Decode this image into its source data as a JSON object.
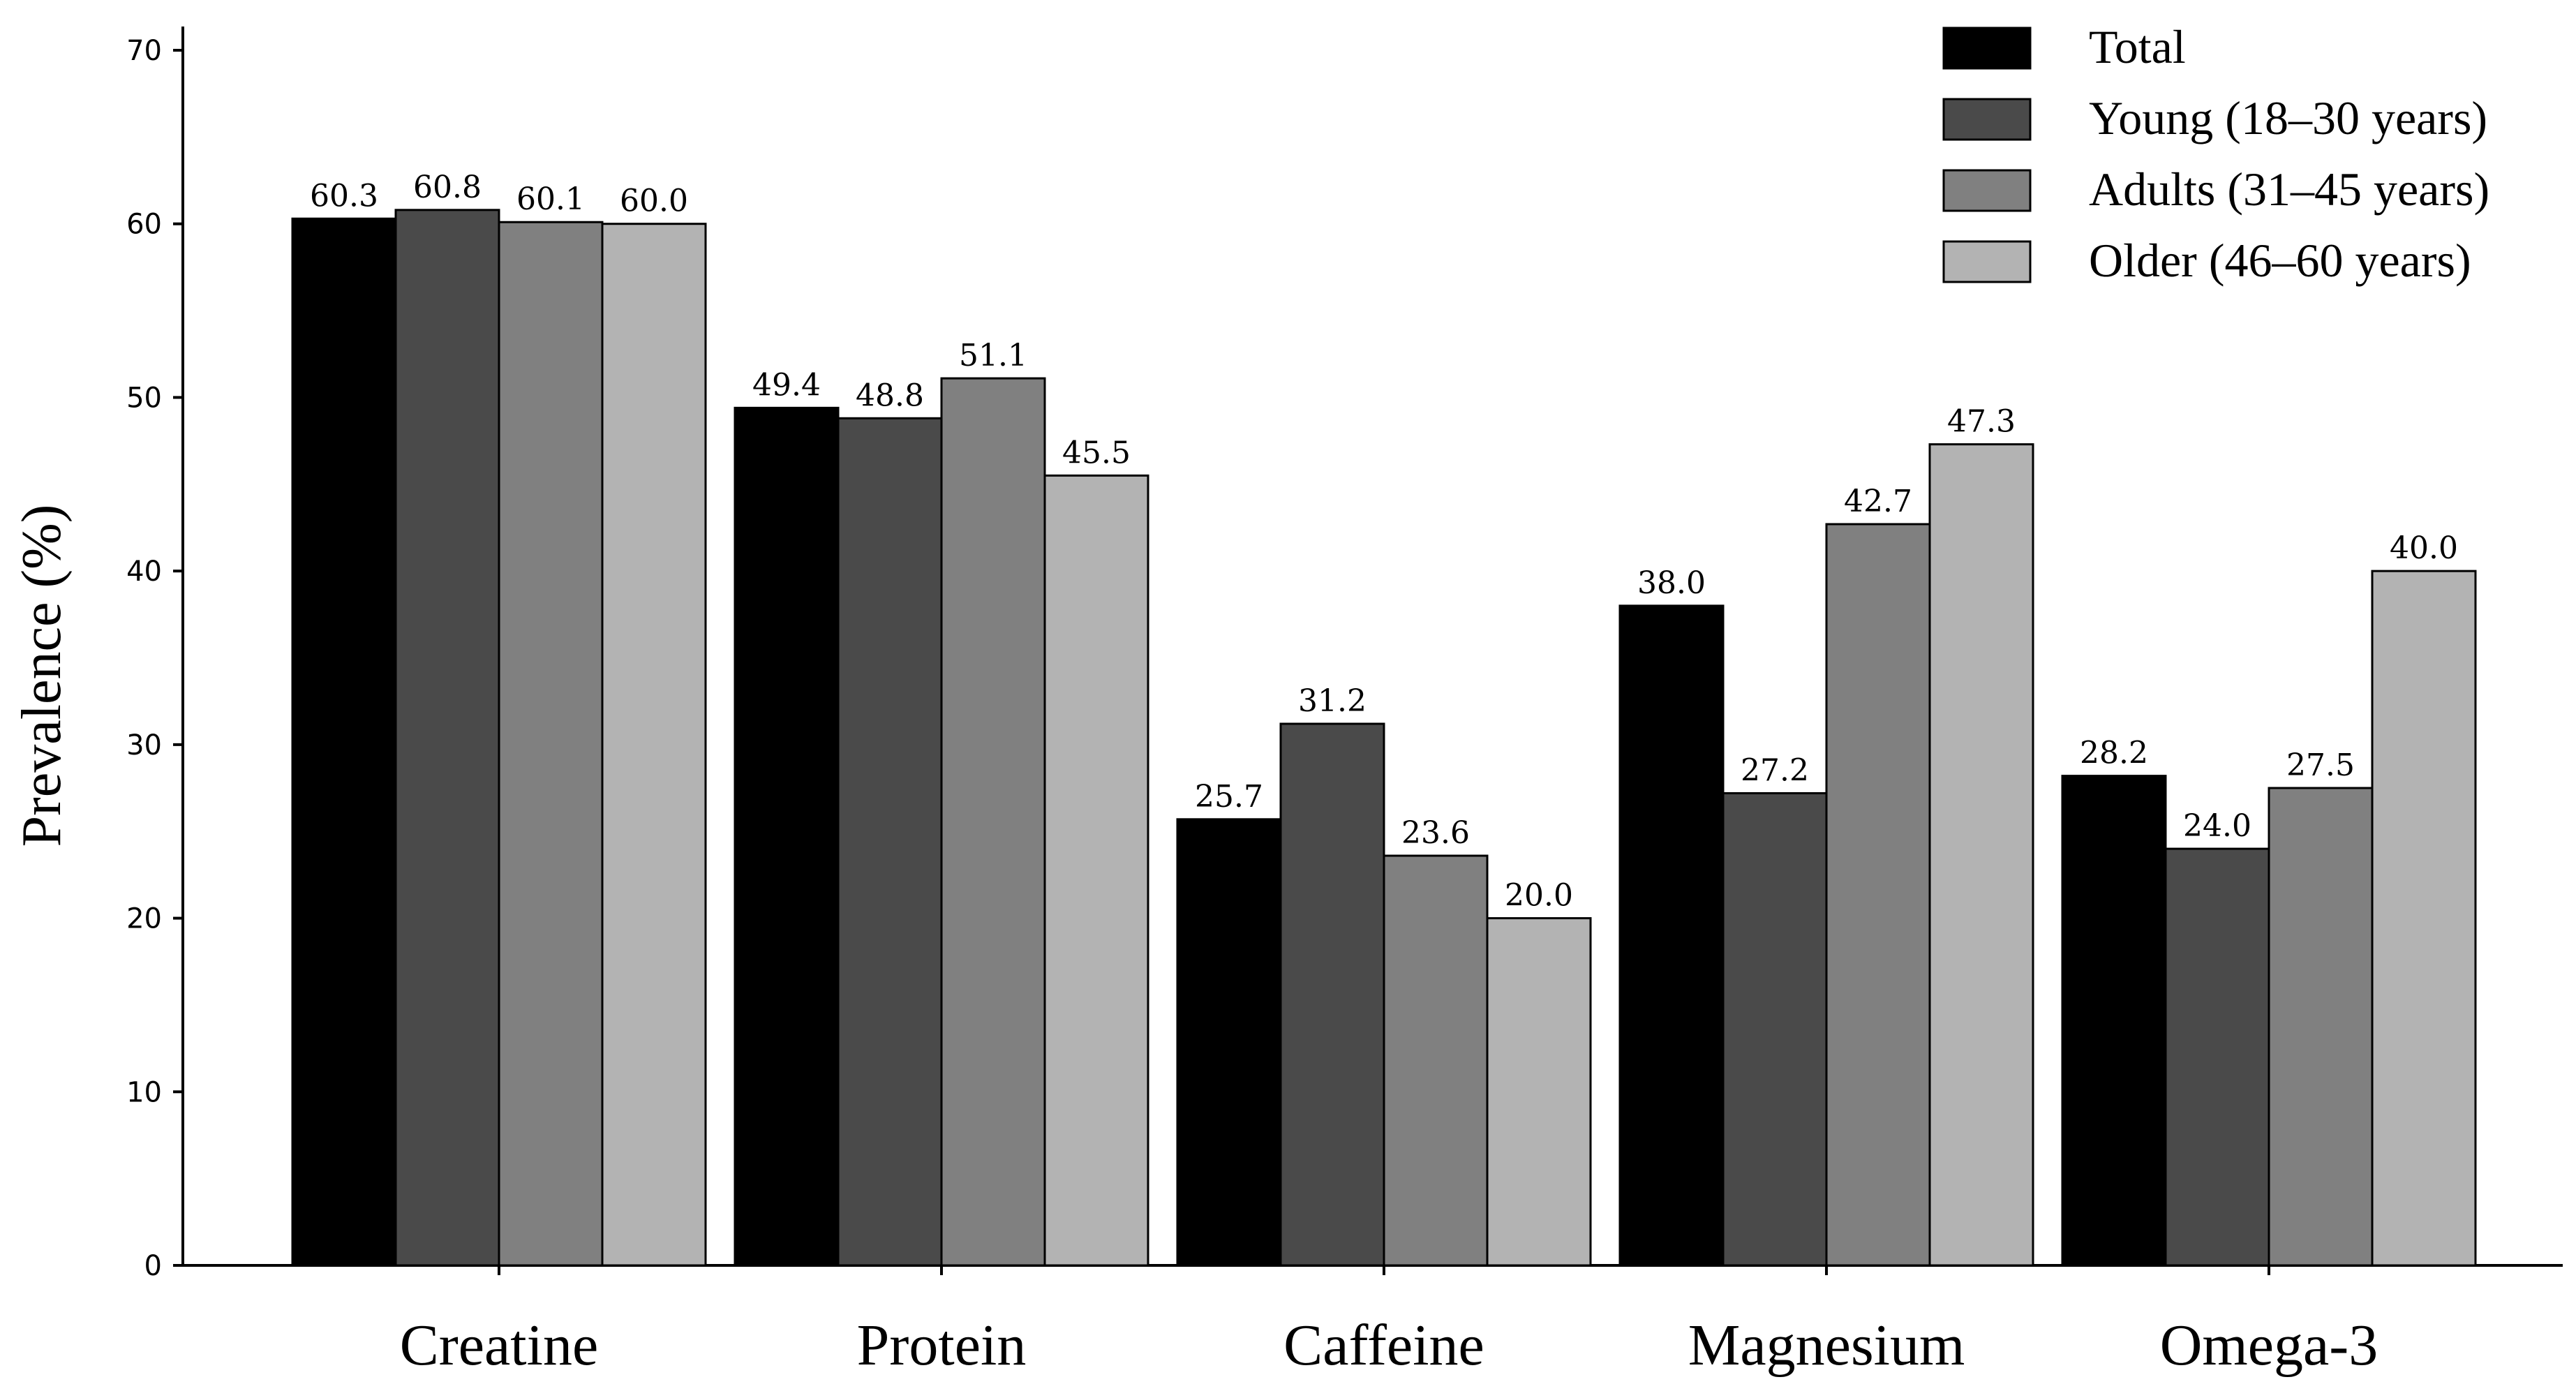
{
  "chart_data": {
    "type": "bar",
    "ylabel": "Prevalence (%)",
    "xlabel": "",
    "ylim": [
      0,
      70
    ],
    "yticks": [
      "0",
      "10",
      "20",
      "30",
      "40",
      "50",
      "60",
      "70"
    ],
    "categories": [
      "Creatine",
      "Protein",
      "Caffeine",
      "Magnesium",
      "Omega-3"
    ],
    "series": [
      {
        "name": "Total",
        "color": "#000000",
        "values": [
          60.3,
          49.4,
          25.7,
          38.0,
          28.2
        ],
        "labels": [
          "60.3",
          "49.4",
          "25.7",
          "38.0",
          "28.2"
        ]
      },
      {
        "name": "Young (18–30 years)",
        "color": "#4a4a4a",
        "values": [
          60.8,
          48.8,
          31.2,
          27.2,
          24.0
        ],
        "labels": [
          "60.8",
          "48.8",
          "31.2",
          "27.2",
          "24.0"
        ]
      },
      {
        "name": "Adults (31–45 years)",
        "color": "#808080",
        "values": [
          60.1,
          51.1,
          23.6,
          42.7,
          27.5
        ],
        "labels": [
          "60.1",
          "51.1",
          "23.6",
          "42.7",
          "27.5"
        ]
      },
      {
        "name": "Older (46–60 years)",
        "color": "#b3b3b3",
        "values": [
          60.0,
          45.5,
          20.0,
          47.3,
          40.0
        ],
        "labels": [
          "60.0",
          "45.5",
          "20.0",
          "47.3",
          "40.0"
        ]
      }
    ],
    "legend_position": "top-right",
    "grid": false
  }
}
